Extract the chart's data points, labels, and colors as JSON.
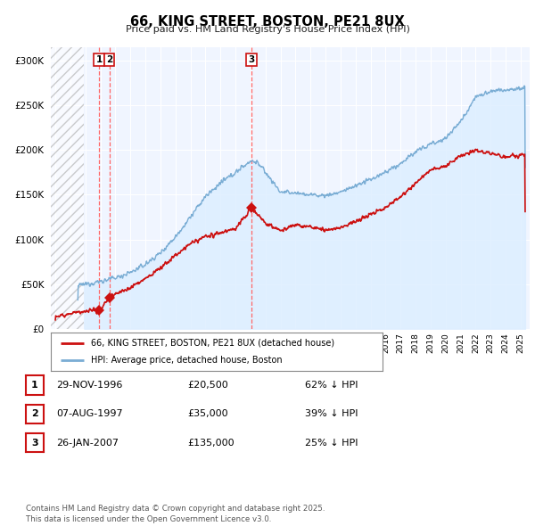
{
  "title": "66, KING STREET, BOSTON, PE21 8UX",
  "subtitle": "Price paid vs. HM Land Registry's House Price Index (HPI)",
  "hpi_color": "#7aadd4",
  "hpi_fill_color": "#ddeeff",
  "price_color": "#cc1111",
  "plot_bg": "#f0f5ff",
  "hatch_color": "#cccccc",
  "ylim": [
    0,
    315000
  ],
  "yticks": [
    0,
    50000,
    100000,
    150000,
    200000,
    250000,
    300000
  ],
  "xlim_start": 1993.7,
  "xlim_end": 2025.6,
  "hatch_end": 1995.9,
  "transactions": [
    {
      "year": 1996.92,
      "price": 20500,
      "label": "1"
    },
    {
      "year": 1997.6,
      "price": 35000,
      "label": "2"
    },
    {
      "year": 2007.07,
      "price": 135000,
      "label": "3"
    }
  ],
  "legend_line1": "66, KING STREET, BOSTON, PE21 8UX (detached house)",
  "legend_line2": "HPI: Average price, detached house, Boston",
  "table_rows": [
    {
      "num": "1",
      "date": "29-NOV-1996",
      "price": "£20,500",
      "note": "62% ↓ HPI"
    },
    {
      "num": "2",
      "date": "07-AUG-1997",
      "price": "£35,000",
      "note": "39% ↓ HPI"
    },
    {
      "num": "3",
      "date": "26-JAN-2007",
      "price": "£135,000",
      "note": "25% ↓ HPI"
    }
  ],
  "footnote": "Contains HM Land Registry data © Crown copyright and database right 2025.\nThis data is licensed under the Open Government Licence v3.0."
}
